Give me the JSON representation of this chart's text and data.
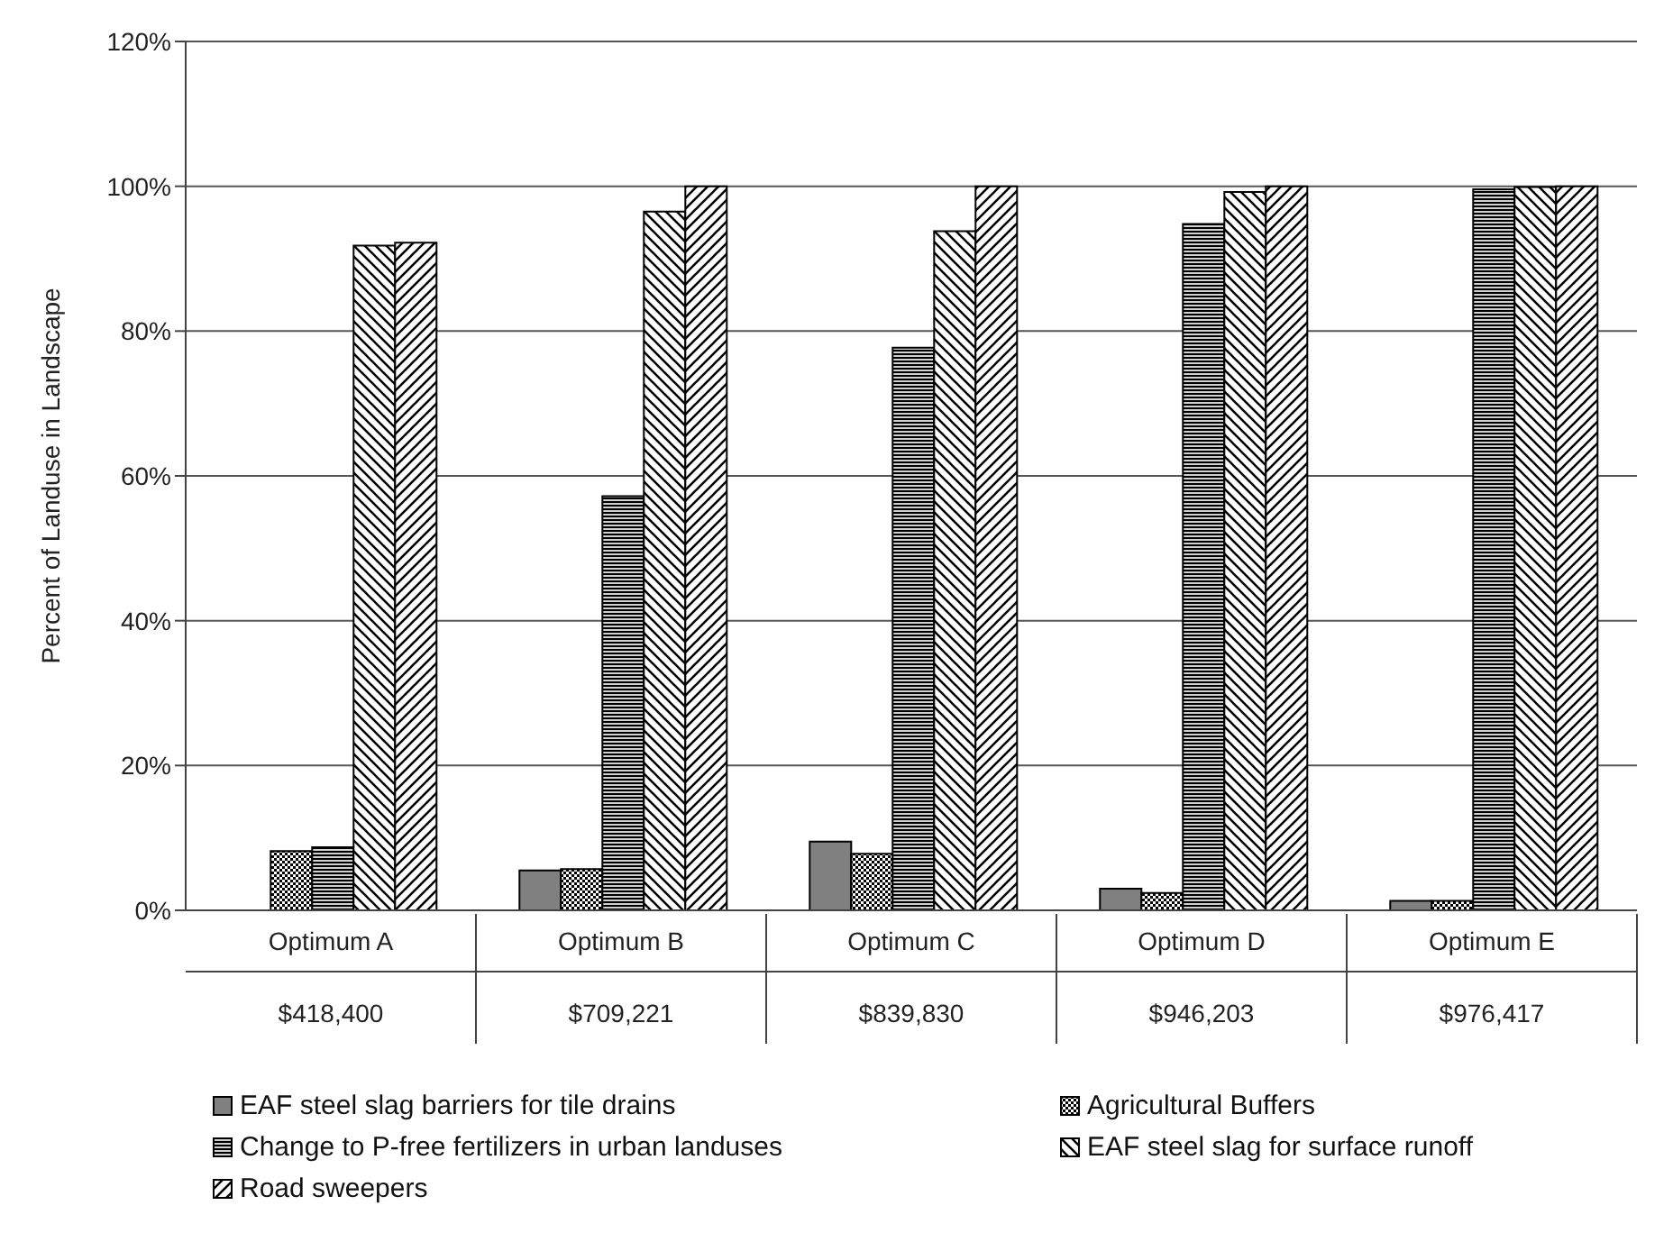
{
  "chart_data": {
    "type": "bar",
    "ylabel": "Percent of Landuse in Landscape",
    "categories": [
      "Optimum A\n$418,400",
      "Optimum B\n$709,221",
      "Optimum C\n$839,830",
      "Optimum D\n$946,203",
      "Optimum E\n$976,417"
    ],
    "series": [
      {
        "name": "EAF steel slag barriers for tile drains",
        "color": "#808080",
        "values": [
          0,
          5.5,
          9.5,
          3.0,
          1.3
        ]
      },
      {
        "name": "Agricultural Buffers",
        "color": "#000000",
        "values": [
          8.2,
          5.7,
          7.8,
          2.4,
          1.3
        ]
      },
      {
        "name": "Change to P-free fertilizers in urban landuses",
        "color": "#000000",
        "values": [
          8.7,
          57.2,
          77.7,
          94.8,
          99.6
        ]
      },
      {
        "name": "EAF steel slag for surface runoff",
        "color": "#000000",
        "values": [
          91.8,
          96.5,
          93.8,
          99.2,
          99.9
        ]
      },
      {
        "name": "Road sweepers",
        "color": "#000000",
        "values": [
          92.2,
          100,
          100,
          100,
          100
        ]
      }
    ],
    "ylim": [
      0,
      120
    ],
    "yticks": [
      {
        "value": 0,
        "label": "0%"
      },
      {
        "value": 20,
        "label": "20%"
      },
      {
        "value": 40,
        "label": "40%"
      },
      {
        "value": 60,
        "label": "60%"
      },
      {
        "value": 80,
        "label": "80%"
      },
      {
        "value": 100,
        "label": "100%"
      },
      {
        "value": 120,
        "label": "120%"
      }
    ],
    "grid": "y",
    "legend": "bottom"
  }
}
